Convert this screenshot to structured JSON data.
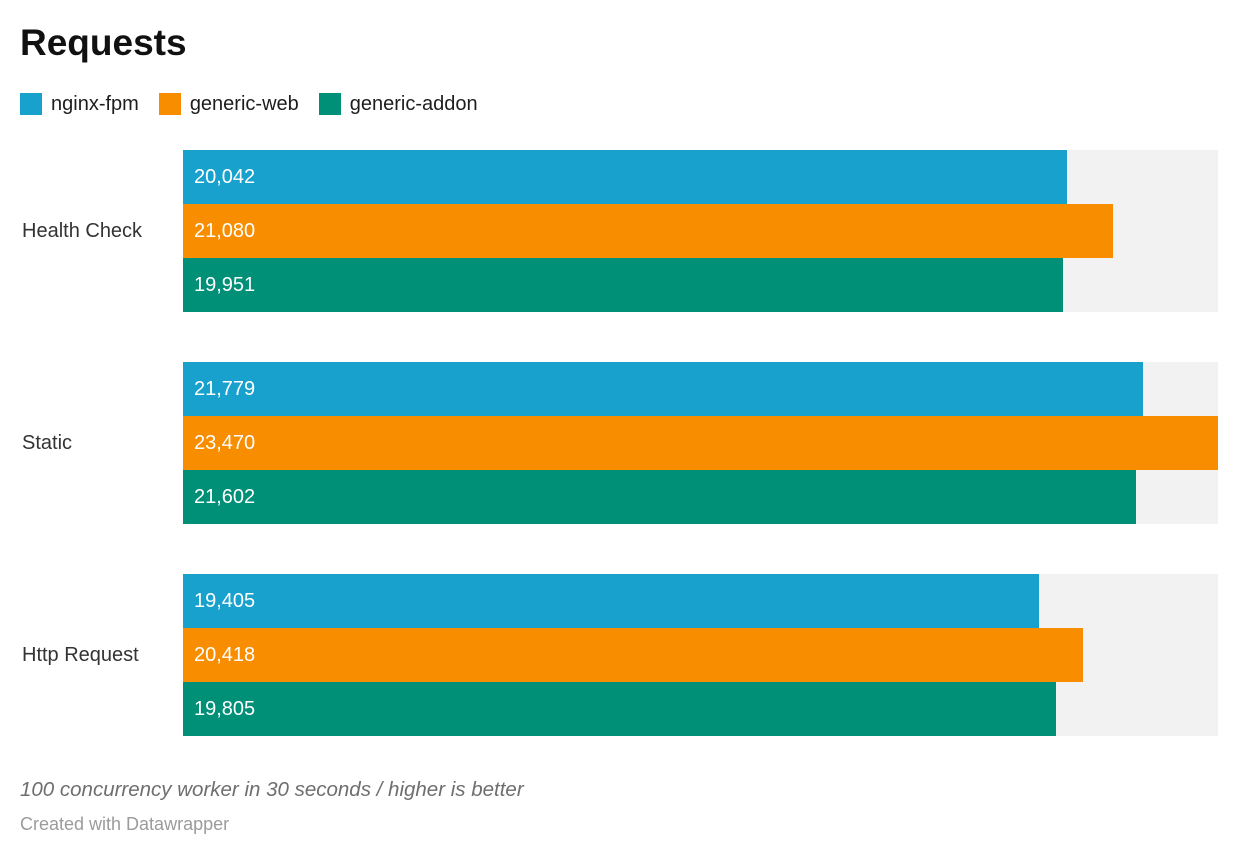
{
  "chart_data": {
    "type": "bar",
    "orientation": "horizontal",
    "title": "Requests",
    "note": "100 concurrency worker in 30 seconds / higher is better",
    "categories": [
      "Health Check",
      "Static",
      "Http Request"
    ],
    "series": [
      {
        "name": "nginx-fpm",
        "color": "#18a1cd",
        "values": [
          20042,
          21779,
          19405
        ],
        "labels": [
          "20,042",
          "21,779",
          "19,405"
        ]
      },
      {
        "name": "generic-web",
        "color": "#f88d00",
        "values": [
          21080,
          23470,
          20418
        ],
        "labels": [
          "21,080",
          "23,470",
          "20,418"
        ]
      },
      {
        "name": "generic-addon",
        "color": "#008f77",
        "values": [
          19951,
          21602,
          19805
        ],
        "labels": [
          "19,951",
          "21,602",
          "19,805"
        ]
      }
    ],
    "xmax": 23470,
    "xlabel": "",
    "ylabel": "",
    "grid": false,
    "legend_position": "top",
    "value_labels_inside": true
  },
  "colors": {
    "track": "#f2f2f2",
    "title_text": "#111111",
    "category_text": "#333333",
    "value_text": "#ffffff",
    "note_text": "#6e6e6e",
    "byline_text": "#9b9b9b"
  },
  "footer": {
    "byline": "Created with Datawrapper"
  }
}
